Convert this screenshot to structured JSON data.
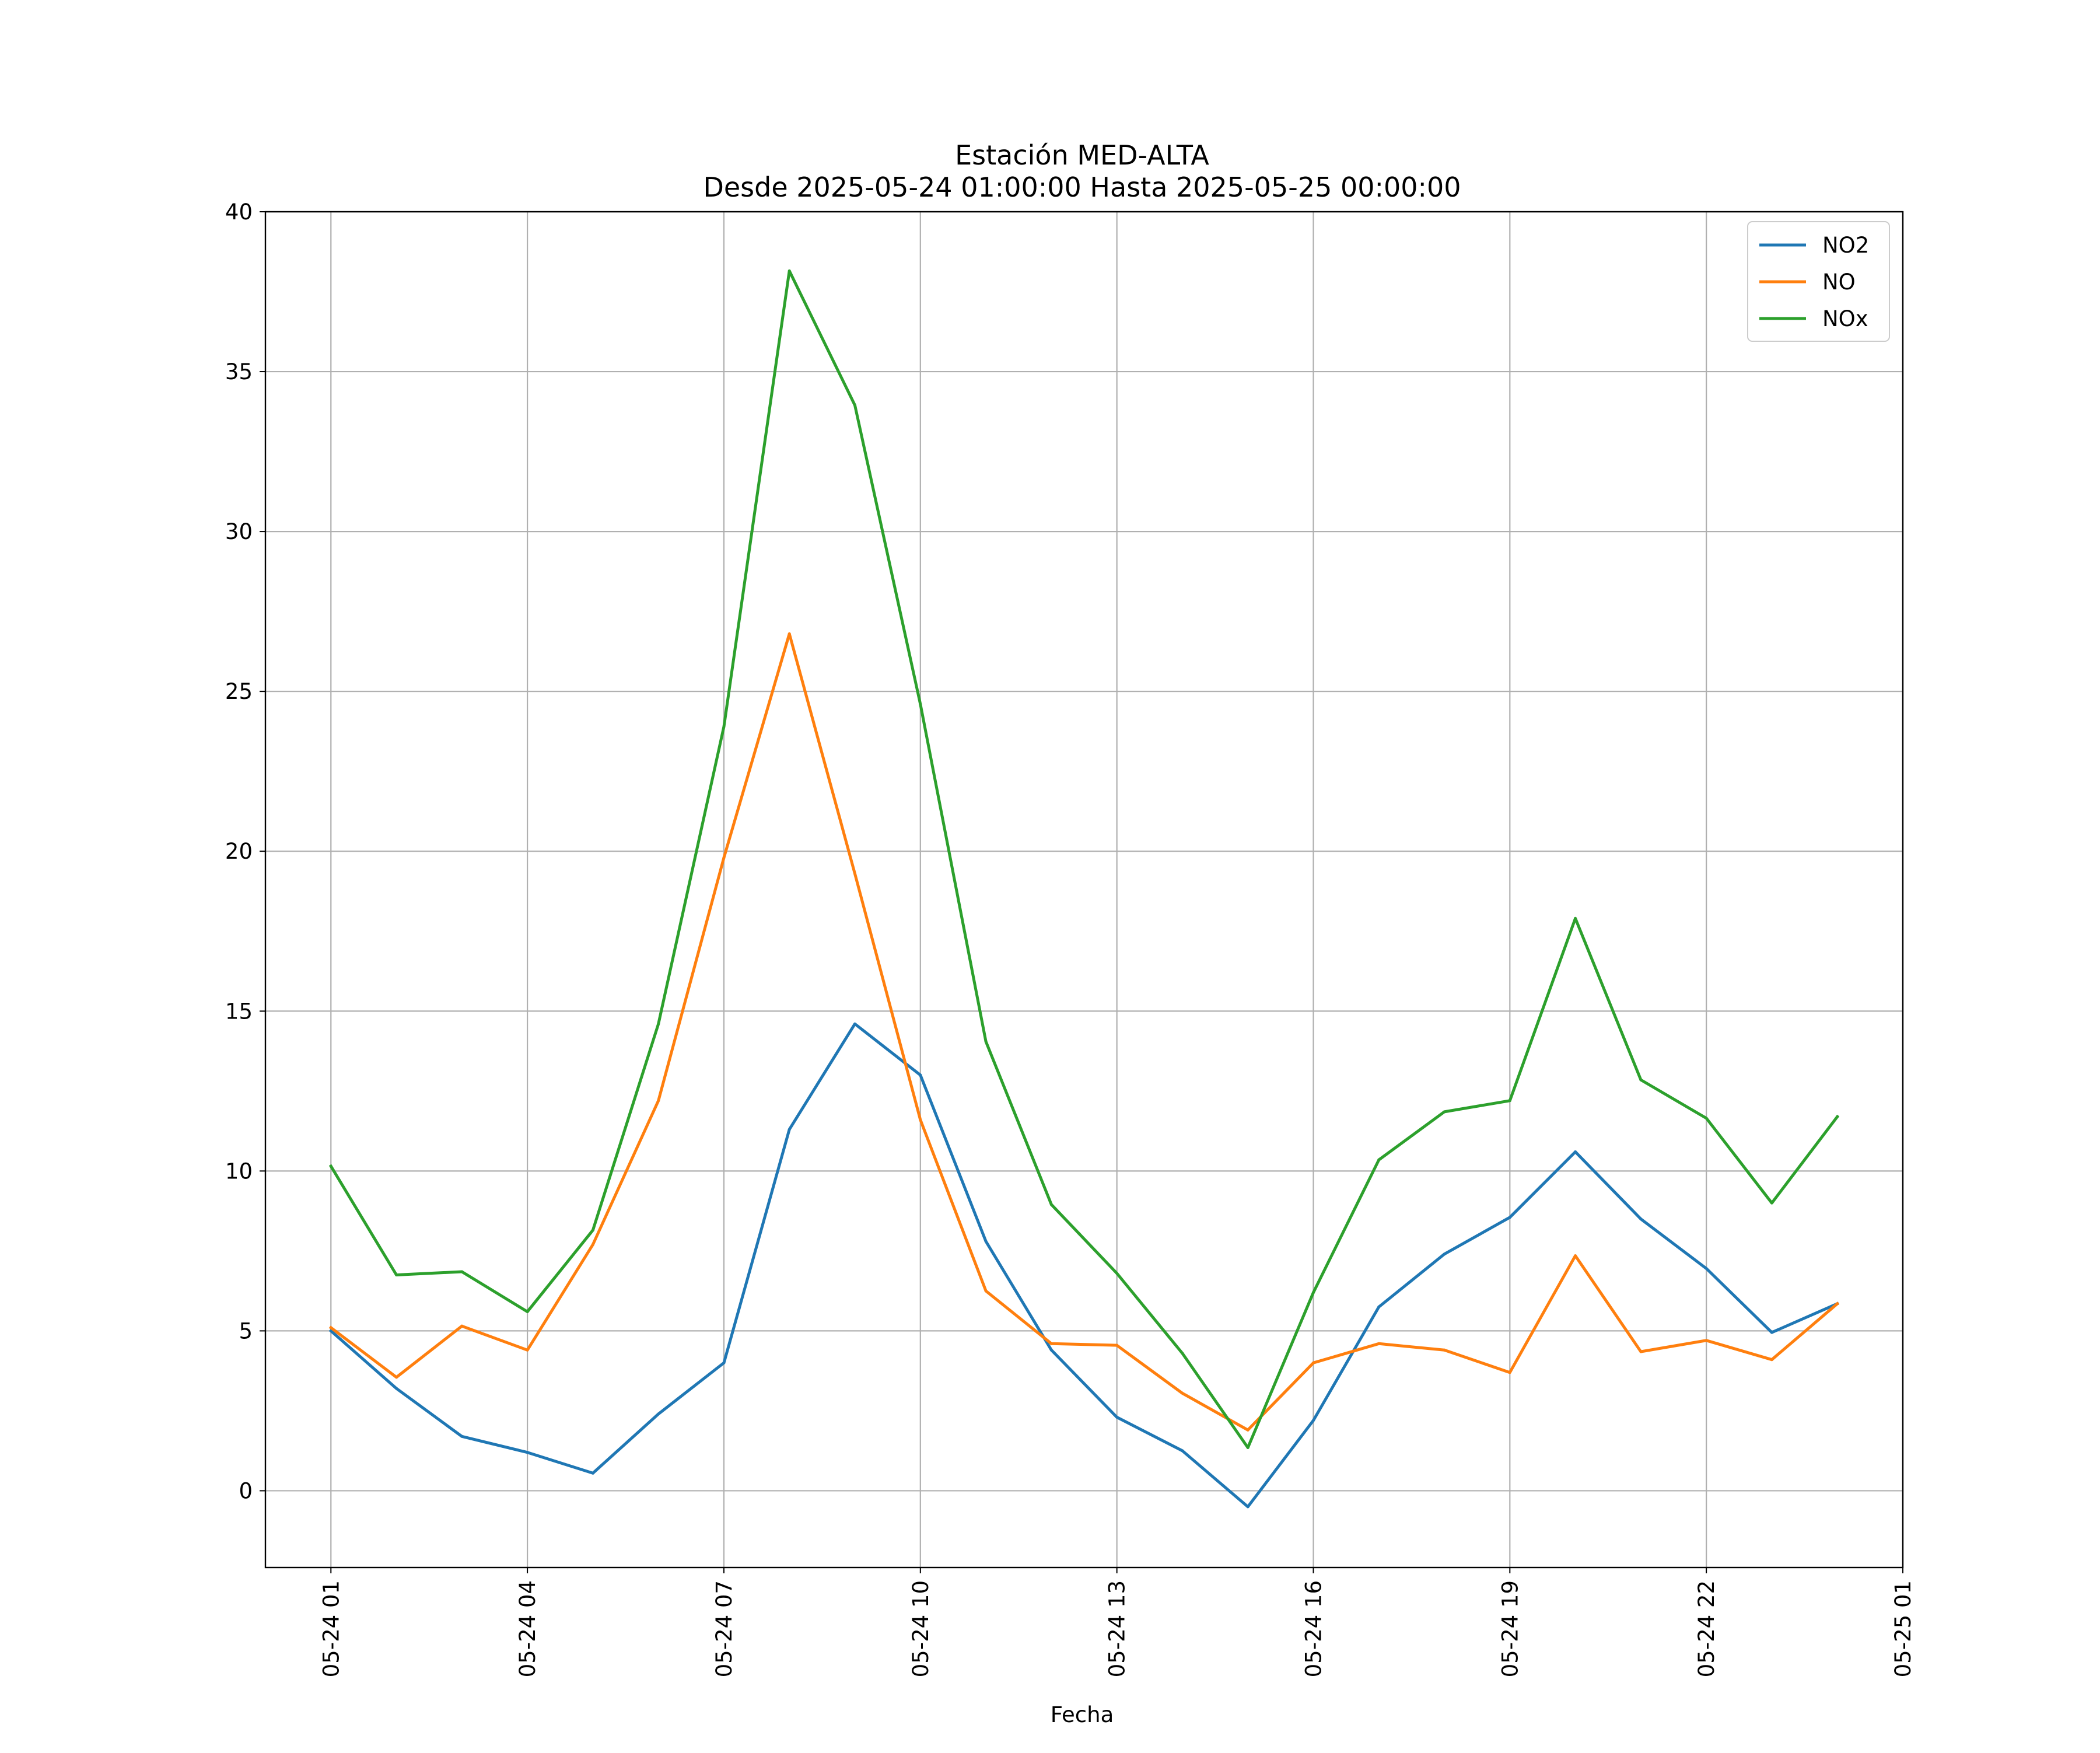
{
  "chart_data": {
    "type": "line",
    "title": "Estación MED-ALTA",
    "subtitle": "Desde 2025-05-24 01:00:00 Hasta 2025-05-25 00:00:00",
    "xlabel": "Fecha",
    "ylabel": "",
    "ylim": [
      -2.4,
      40
    ],
    "xlim": [
      "2025-05-24 00:00",
      "2025-05-25 01:00"
    ],
    "grid": true,
    "legend_position": "top-right",
    "y_ticks": [
      0,
      5,
      10,
      15,
      20,
      25,
      30,
      35,
      40
    ],
    "y_tick_labels": [
      "0",
      "5",
      "10",
      "15",
      "20",
      "25",
      "30",
      "35",
      "40"
    ],
    "x_ticks": [
      "2025-05-24 01:00",
      "2025-05-24 04:00",
      "2025-05-24 07:00",
      "2025-05-24 10:00",
      "2025-05-24 13:00",
      "2025-05-24 16:00",
      "2025-05-24 19:00",
      "2025-05-24 22:00",
      "2025-05-25 01:00"
    ],
    "x_tick_labels": [
      "05-24 01",
      "05-24 04",
      "05-24 07",
      "05-24 10",
      "05-24 13",
      "05-24 16",
      "05-24 19",
      "05-24 22",
      "05-25 01"
    ],
    "x": [
      "2025-05-24 01:00",
      "2025-05-24 02:00",
      "2025-05-24 03:00",
      "2025-05-24 04:00",
      "2025-05-24 05:00",
      "2025-05-24 06:00",
      "2025-05-24 07:00",
      "2025-05-24 08:00",
      "2025-05-24 09:00",
      "2025-05-24 10:00",
      "2025-05-24 11:00",
      "2025-05-24 12:00",
      "2025-05-24 13:00",
      "2025-05-24 14:00",
      "2025-05-24 15:00",
      "2025-05-24 16:00",
      "2025-05-24 17:00",
      "2025-05-24 18:00",
      "2025-05-24 19:00",
      "2025-05-24 20:00",
      "2025-05-24 21:00",
      "2025-05-24 22:00",
      "2025-05-24 23:00",
      "2025-05-25 00:00"
    ],
    "series": [
      {
        "name": "NO2",
        "color": "#1f77b4",
        "values": [
          5.0,
          3.2,
          1.7,
          1.2,
          0.55,
          2.4,
          4.0,
          11.3,
          14.6,
          13.0,
          7.8,
          4.4,
          2.3,
          1.25,
          -0.5,
          2.2,
          5.75,
          7.4,
          8.55,
          10.6,
          8.5,
          6.95,
          4.95,
          5.85
        ]
      },
      {
        "name": "NO",
        "color": "#ff7f0e",
        "values": [
          5.1,
          3.55,
          5.15,
          4.4,
          7.7,
          12.2,
          19.8,
          26.8,
          19.3,
          11.6,
          6.25,
          4.6,
          4.55,
          3.05,
          1.9,
          4.0,
          4.6,
          4.4,
          3.7,
          7.35,
          4.35,
          4.7,
          4.1,
          5.85
        ]
      },
      {
        "name": "NOx",
        "color": "#2ca02c",
        "values": [
          10.15,
          6.75,
          6.85,
          5.6,
          8.15,
          14.6,
          23.9,
          38.15,
          33.95,
          24.6,
          14.05,
          8.95,
          6.8,
          4.3,
          1.35,
          6.2,
          10.35,
          11.85,
          12.2,
          17.9,
          12.85,
          11.65,
          9.0,
          11.7
        ]
      }
    ]
  }
}
